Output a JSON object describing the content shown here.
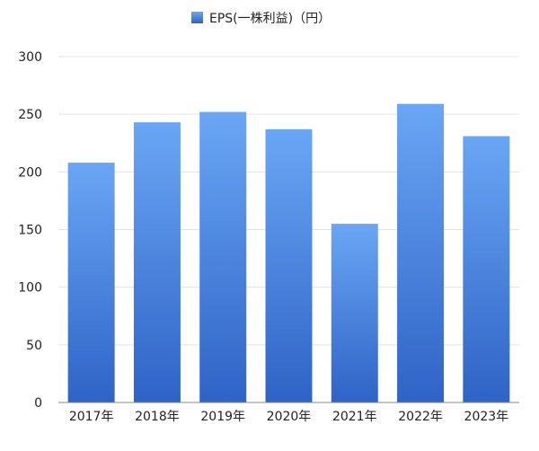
{
  "chart_data": {
    "type": "bar",
    "categories": [
      "2017年",
      "2018年",
      "2019年",
      "2020年",
      "2021年",
      "2022年",
      "2023年"
    ],
    "series": [
      {
        "name": "EPS(一株利益)（円）",
        "values": [
          208,
          243,
          252,
          237,
          155,
          259,
          231
        ]
      }
    ],
    "title": "",
    "xlabel": "",
    "ylabel": "",
    "ylim": [
      0,
      300
    ],
    "yticks": [
      "0",
      "50",
      "100",
      "150",
      "200",
      "250",
      "300"
    ],
    "grid": true,
    "legend_position": "top",
    "colors": {
      "bar_top": "#6aa6f5",
      "bar_bottom": "#2f63c6",
      "grid": "#e3e3e3",
      "axis": "#888888"
    }
  }
}
